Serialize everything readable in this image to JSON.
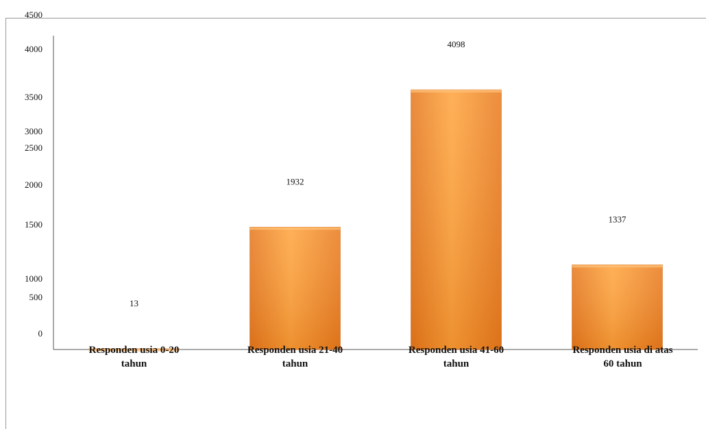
{
  "chart_data": {
    "type": "bar",
    "title": "",
    "xlabel": "",
    "ylabel": "",
    "categories": [
      [
        "Responden usia 0-20",
        "tahun"
      ],
      [
        "Responden usia 21-40",
        "tahun"
      ],
      [
        "Responden usia 41-60",
        "tahun"
      ],
      [
        "Responden usia  di atas",
        "60 tahun"
      ]
    ],
    "values": [
      13,
      1932,
      4098,
      1337
    ],
    "data_labels": [
      "13",
      "1932",
      "4098",
      "1337"
    ],
    "y_ticks": [
      "4500",
      "4000",
      "3500",
      "3000",
      "2500",
      "2000",
      "1500",
      "1000",
      "500",
      "0"
    ],
    "ylim": [
      0,
      4500
    ],
    "grid": false,
    "bar_color": "#f7941d"
  }
}
